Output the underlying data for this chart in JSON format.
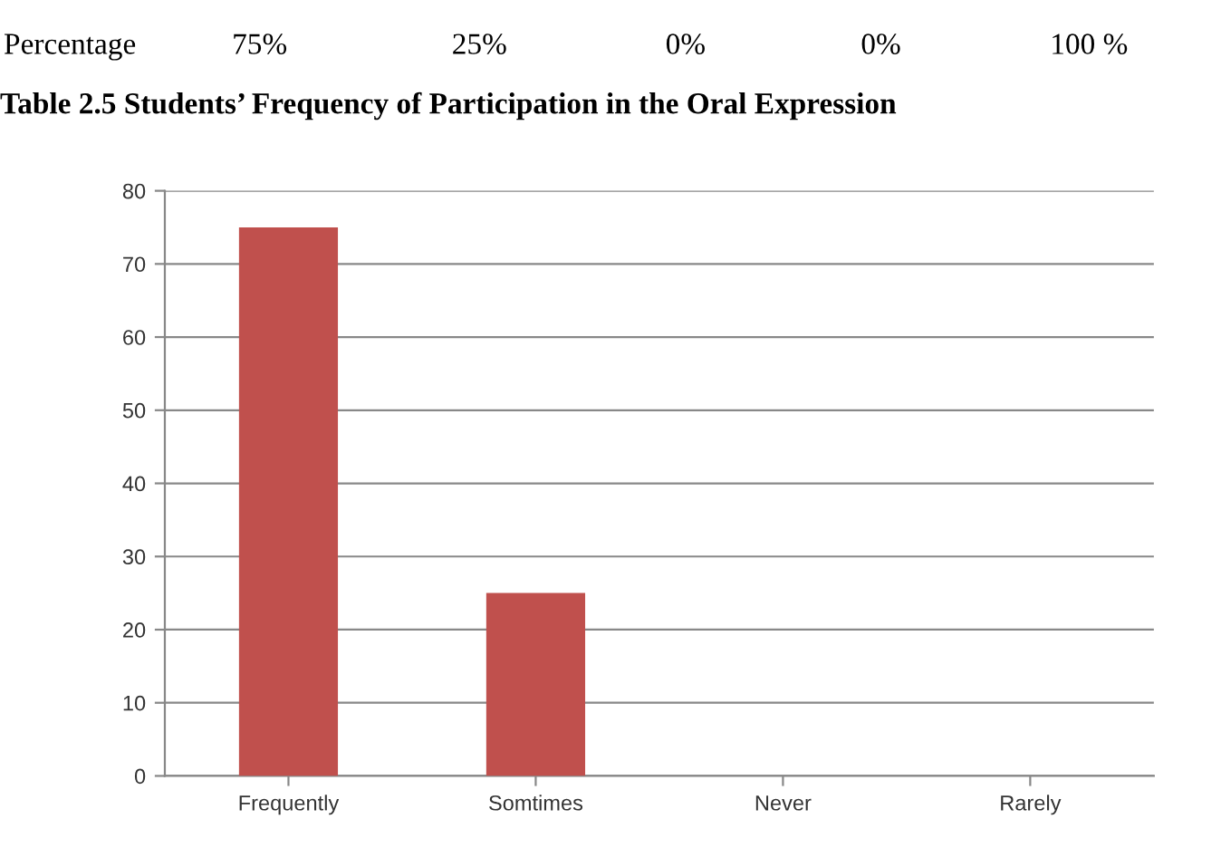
{
  "chart_data": {
    "type": "bar",
    "title": "Table 2.5 Students’ Frequency of Participation in the Oral Expression",
    "annotations": [
      "Percentage",
      "75%",
      "25%",
      "0%",
      "0%",
      "100 %"
    ],
    "categories": [
      "Frequently",
      "Somtimes",
      "Never",
      "Rarely"
    ],
    "values": [
      75,
      25,
      0,
      0
    ],
    "color": "#c0504d",
    "ylim": [
      0,
      80
    ],
    "yticks": [
      0,
      10,
      20,
      30,
      40,
      50,
      60,
      70,
      80
    ],
    "grid": "y",
    "legend": false
  }
}
